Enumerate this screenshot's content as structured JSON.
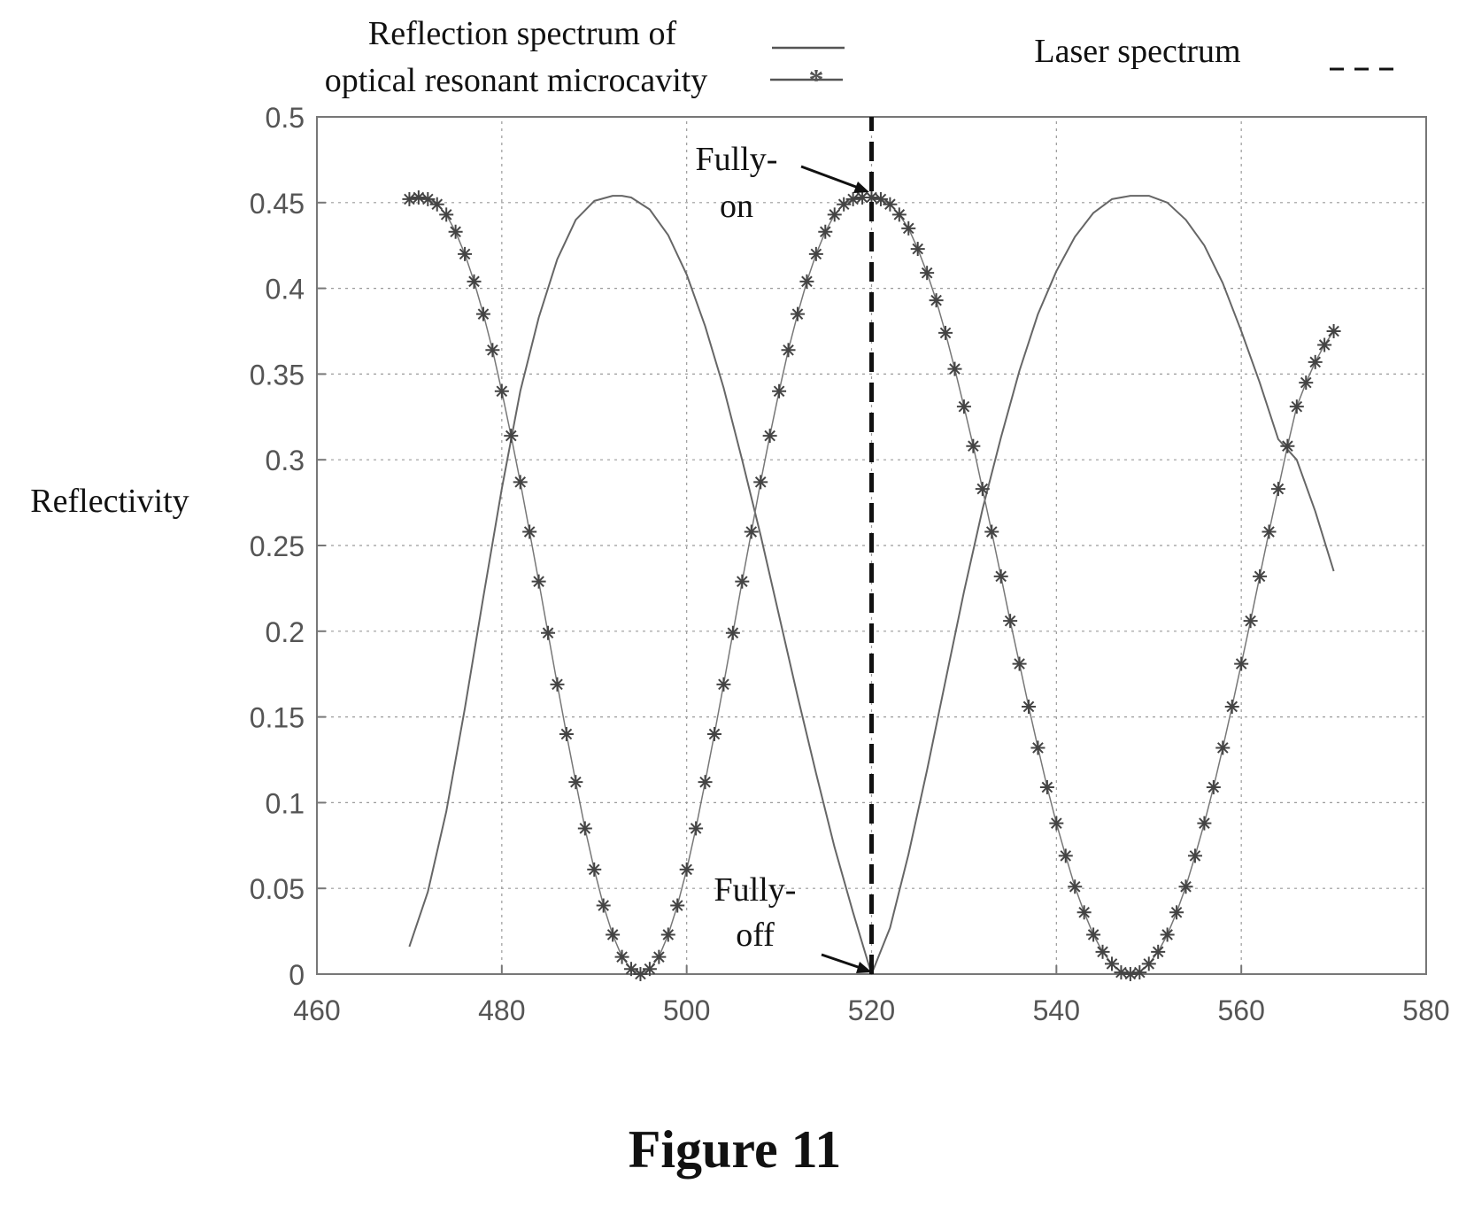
{
  "caption": "Figure 11",
  "legend": {
    "entry1_line1": "Reflection spectrum of",
    "entry1_line2": "optical resonant microcavity",
    "entry2": "Laser spectrum"
  },
  "annotations": {
    "on_line1": "Fully-",
    "on_line2": "on",
    "off_line1": "Fully-",
    "off_line2": "off"
  },
  "chart_data": {
    "type": "line",
    "title": "",
    "xlabel": "",
    "ylabel": "Reflectivity",
    "xlim": [
      460,
      580
    ],
    "ylim": [
      0,
      0.5
    ],
    "xticks": [
      460,
      480,
      500,
      520,
      540,
      560,
      580
    ],
    "yticks": [
      0,
      0.05,
      0.1,
      0.15,
      0.2,
      0.25,
      0.3,
      0.35,
      0.4,
      0.45,
      0.5
    ],
    "xtick_labels": [
      "460",
      "480",
      "500",
      "520",
      "540",
      "560",
      "580"
    ],
    "ytick_labels": [
      "0",
      "0.05",
      "0.1",
      "0.15",
      "0.2",
      "0.25",
      "0.3",
      "0.35",
      "0.4",
      "0.45",
      "0.5"
    ],
    "grid": true,
    "legend_position": "top",
    "series": [
      {
        "line_style": "solid",
        "x": [
          470,
          472,
          474,
          476,
          478,
          480,
          482,
          484,
          486,
          488,
          490,
          492,
          493,
          494,
          496,
          498,
          500,
          502,
          504,
          506,
          508,
          510,
          512,
          514,
          516,
          518,
          520,
          522,
          524,
          526,
          528,
          530,
          532,
          534,
          536,
          538,
          540,
          542,
          544,
          546,
          548,
          550,
          552,
          554,
          556,
          558,
          560,
          562,
          564,
          566,
          568,
          570
        ],
        "y": [
          0.016,
          0.048,
          0.095,
          0.155,
          0.22,
          0.283,
          0.34,
          0.383,
          0.417,
          0.44,
          0.451,
          0.454,
          0.454,
          0.453,
          0.446,
          0.431,
          0.408,
          0.378,
          0.342,
          0.3,
          0.256,
          0.209,
          0.162,
          0.117,
          0.074,
          0.036,
          0.0,
          0.027,
          0.07,
          0.119,
          0.171,
          0.223,
          0.271,
          0.313,
          0.352,
          0.385,
          0.41,
          0.43,
          0.444,
          0.452,
          0.454,
          0.454,
          0.45,
          0.44,
          0.425,
          0.403,
          0.375,
          0.345,
          0.312,
          0.3,
          0.27,
          0.235
        ]
      },
      {
        "line_style": "asterisk-markers",
        "x": [
          470,
          471,
          472,
          473,
          474,
          475,
          476,
          477,
          478,
          479,
          480,
          481,
          482,
          483,
          484,
          485,
          486,
          487,
          488,
          489,
          490,
          491,
          492,
          493,
          494,
          495,
          496,
          497,
          498,
          499,
          500,
          501,
          502,
          503,
          504,
          505,
          506,
          507,
          508,
          509,
          510,
          511,
          512,
          513,
          514,
          515,
          516,
          517,
          518,
          519,
          520,
          521,
          522,
          523,
          524,
          525,
          526,
          527,
          528,
          529,
          530,
          531,
          532,
          533,
          534,
          535,
          536,
          537,
          538,
          539,
          540,
          541,
          542,
          543,
          544,
          545,
          546,
          547,
          548,
          549,
          550,
          551,
          552,
          553,
          554,
          555,
          556,
          557,
          558,
          559,
          560,
          561,
          562,
          563,
          564,
          565,
          566,
          567,
          568,
          569,
          570
        ],
        "y": [
          0.452,
          0.453,
          0.452,
          0.449,
          0.443,
          0.433,
          0.42,
          0.404,
          0.385,
          0.364,
          0.34,
          0.314,
          0.287,
          0.258,
          0.229,
          0.199,
          0.169,
          0.14,
          0.112,
          0.085,
          0.061,
          0.04,
          0.023,
          0.01,
          0.003,
          0.0,
          0.003,
          0.01,
          0.023,
          0.04,
          0.061,
          0.085,
          0.112,
          0.14,
          0.169,
          0.199,
          0.229,
          0.258,
          0.287,
          0.314,
          0.34,
          0.364,
          0.385,
          0.404,
          0.42,
          0.433,
          0.443,
          0.449,
          0.452,
          0.453,
          0.453,
          0.452,
          0.449,
          0.443,
          0.435,
          0.423,
          0.409,
          0.393,
          0.374,
          0.353,
          0.331,
          0.308,
          0.283,
          0.258,
          0.232,
          0.206,
          0.181,
          0.156,
          0.132,
          0.109,
          0.088,
          0.069,
          0.051,
          0.036,
          0.023,
          0.013,
          0.006,
          0.001,
          0.0,
          0.001,
          0.006,
          0.013,
          0.023,
          0.036,
          0.051,
          0.069,
          0.088,
          0.109,
          0.132,
          0.156,
          0.181,
          0.206,
          0.232,
          0.258,
          0.283,
          0.308,
          0.331,
          0.345,
          0.357,
          0.367,
          0.375
        ]
      },
      {
        "line_style": "dashed",
        "x": [
          520,
          520
        ],
        "y": [
          0,
          0.5
        ]
      }
    ]
  }
}
